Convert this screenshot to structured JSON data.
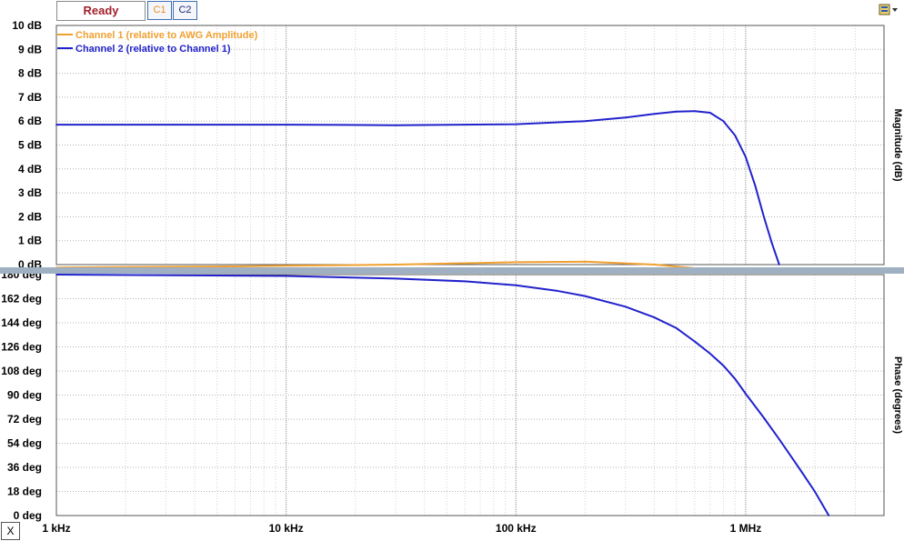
{
  "status": {
    "label": "Ready"
  },
  "channel_buttons": [
    "C1",
    "C2"
  ],
  "close_button": "X",
  "colors": {
    "channel1": "#f0a030",
    "channel2": "#2222cc",
    "status_text": "#a0202a",
    "divider": "#9fb0c3"
  },
  "chart_data": [
    {
      "type": "line",
      "panel": "magnitude",
      "ylabel": "Magnitude (dB)",
      "xscale": "log",
      "xlim": [
        1000,
        4000000
      ],
      "ylim": [
        0,
        10
      ],
      "grid": true,
      "y_ticks": [
        "0 dB",
        "1 dB",
        "2 dB",
        "3 dB",
        "4 dB",
        "5 dB",
        "6 dB",
        "7 dB",
        "8 dB",
        "9 dB",
        "10 dB"
      ],
      "series": [
        {
          "name": "Channel 1 (relative to AWG Amplitude)",
          "color": "#f0a030",
          "x": [
            1000,
            5000,
            10000,
            30000,
            100000,
            200000,
            400000,
            600000,
            900000,
            1200000
          ],
          "y": [
            -0.12,
            -0.08,
            -0.05,
            0.0,
            0.1,
            0.12,
            0.0,
            -0.15,
            -0.25,
            -0.3
          ]
        },
        {
          "name": "Channel 2 (relative to Channel 1)",
          "color": "#2222cc",
          "x": [
            1000,
            10000,
            30000,
            100000,
            200000,
            300000,
            400000,
            500000,
            600000,
            700000,
            800000,
            900000,
            1000000,
            1100000,
            1200000,
            1300000,
            1400000
          ],
          "y": [
            5.85,
            5.85,
            5.83,
            5.87,
            6.0,
            6.15,
            6.3,
            6.4,
            6.42,
            6.35,
            6.0,
            5.4,
            4.5,
            3.3,
            2.0,
            0.9,
            0.0
          ]
        }
      ]
    },
    {
      "type": "line",
      "panel": "phase",
      "ylabel": "Phase (degrees)",
      "xscale": "log",
      "xlim": [
        1000,
        4000000
      ],
      "ylim": [
        0,
        180
      ],
      "grid": true,
      "x_ticks": [
        "1 kHz",
        "10 kHz",
        "100 kHz",
        "1 MHz"
      ],
      "y_ticks": [
        "0 deg",
        "18 deg",
        "36 deg",
        "54 deg",
        "72 deg",
        "90 deg",
        "108 deg",
        "126 deg",
        "144 deg",
        "162 deg",
        "180 deg"
      ],
      "series": [
        {
          "name": "Channel 2",
          "color": "#2222cc",
          "x": [
            1000,
            10000,
            30000,
            60000,
            100000,
            150000,
            200000,
            300000,
            400000,
            500000,
            600000,
            700000,
            800000,
            900000,
            1000000,
            1200000,
            1400000,
            1700000,
            2000000,
            2300000
          ],
          "y": [
            180,
            179,
            177,
            175,
            172,
            168,
            164,
            156,
            148,
            140,
            130,
            121,
            112,
            102,
            91,
            73,
            57,
            36,
            18,
            0
          ]
        }
      ]
    }
  ]
}
